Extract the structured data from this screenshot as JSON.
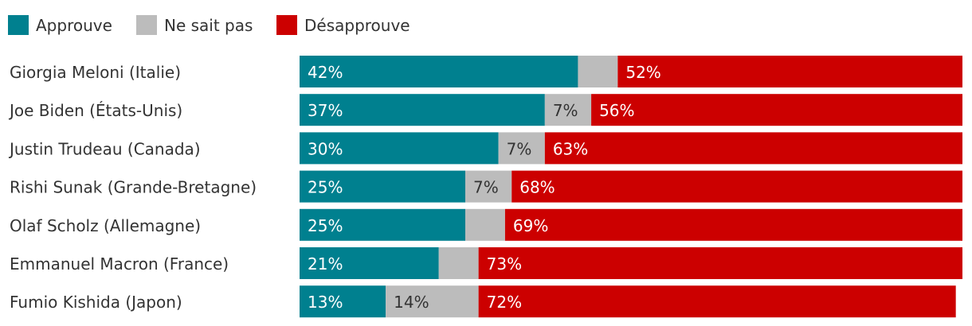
{
  "chart_data": {
    "type": "bar",
    "orientation": "horizontal",
    "stacked": true,
    "legend_position": "top-left",
    "categories": [
      "Giorgia Meloni (Italie)",
      "Joe Biden (États-Unis)",
      "Justin Trudeau (Canada)",
      "Rishi Sunak (Grande-Bretagne)",
      "Olaf Scholz (Allemagne)",
      "Emmanuel Macron (France)",
      "Fumio Kishida (Japon)"
    ],
    "series": [
      {
        "name": "Approuve",
        "key": "approve",
        "color": "#00808f",
        "label_color": "#ffffff",
        "values": [
          42,
          37,
          30,
          25,
          25,
          21,
          13
        ],
        "labels": [
          "42%",
          "37%",
          "30%",
          "25%",
          "25%",
          "21%",
          "13%"
        ]
      },
      {
        "name": "Ne sait pas",
        "key": "unknown",
        "color": "#bcbcbc",
        "label_color": "#333333",
        "values": [
          6,
          7,
          7,
          7,
          6,
          6,
          14
        ],
        "labels": [
          "",
          "7%",
          "7%",
          "7%",
          "",
          "",
          "14%"
        ]
      },
      {
        "name": "Désapprouve",
        "key": "disapprove",
        "color": "#cc0000",
        "label_color": "#ffffff",
        "values": [
          52,
          56,
          63,
          68,
          69,
          73,
          72
        ],
        "labels": [
          "52%",
          "56%",
          "63%",
          "68%",
          "69%",
          "73%",
          "72%"
        ]
      }
    ],
    "xlim": [
      0,
      100
    ],
    "grid": false,
    "title": "",
    "xlabel": "",
    "ylabel": ""
  }
}
